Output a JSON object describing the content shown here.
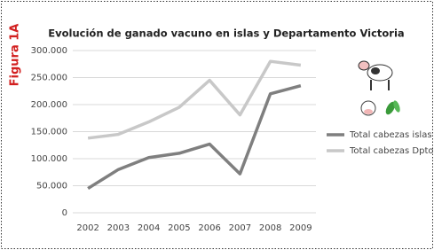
{
  "figure_label": "Figura 1A",
  "chart_data": {
    "type": "line",
    "title": "Evolución de ganado vacuno en islas y Departamento Victoria",
    "categories": [
      "2002",
      "2003",
      "2004",
      "2005",
      "2006",
      "2007",
      "2008",
      "2009"
    ],
    "series": [
      {
        "name": "Total cabezas islas",
        "color": "#7f7f7f",
        "values": [
          45000,
          80000,
          102000,
          110000,
          127000,
          72000,
          220000,
          235000
        ]
      },
      {
        "name": "Total cabezas Dpto",
        "color": "#c8c8c8",
        "values": [
          138000,
          145000,
          168000,
          195000,
          245000,
          181000,
          280000,
          273000
        ]
      }
    ],
    "ylim": [
      0,
      300000
    ],
    "yticks": [
      0,
      {
        "value": 50000,
        "label": "50.000"
      },
      {
        "value": 100000,
        "label": "100.000"
      },
      {
        "value": 150000,
        "label": "150.000"
      },
      {
        "value": 200000,
        "label": "200.000"
      },
      {
        "value": 250000,
        "label": "250.000"
      },
      {
        "value": 300000,
        "label": "300.000"
      }
    ],
    "grid": true,
    "legend": "right"
  }
}
